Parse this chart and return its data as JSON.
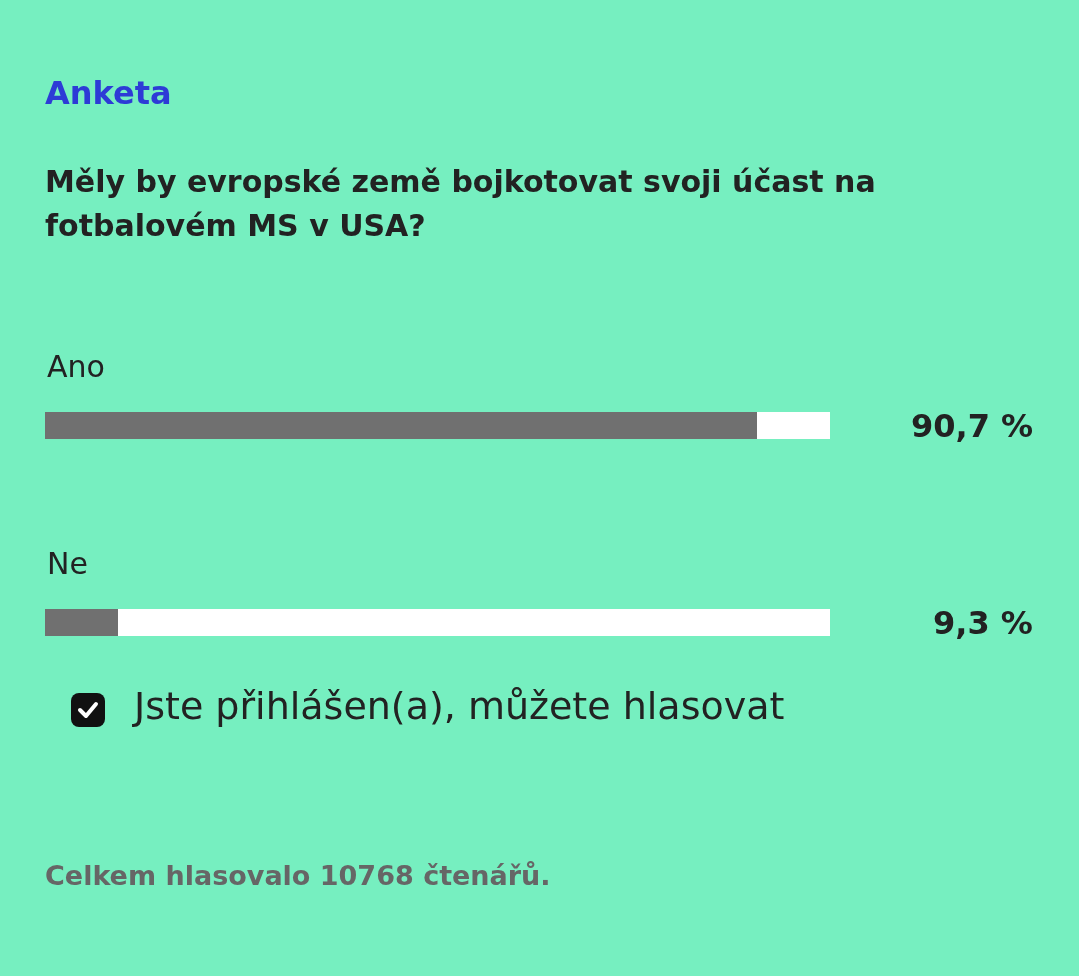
{
  "chart_data": {
    "type": "bar",
    "orientation": "horizontal",
    "title": "Anketa",
    "subtitle": "Měly by evropské země bojkotovat svoji účast na fotbalovém MS v USA?",
    "categories": [
      "Ano",
      "Ne"
    ],
    "values": [
      90.7,
      9.3
    ],
    "color": "#707070",
    "value_labels": [
      "90,7 %",
      "9,3 %"
    ],
    "xlim": [
      0,
      100
    ],
    "annotations": [
      "Jste přihlášen(a), můžete hlasovat",
      "Celkem hlasovalo 10768 čtenářů."
    ]
  }
}
